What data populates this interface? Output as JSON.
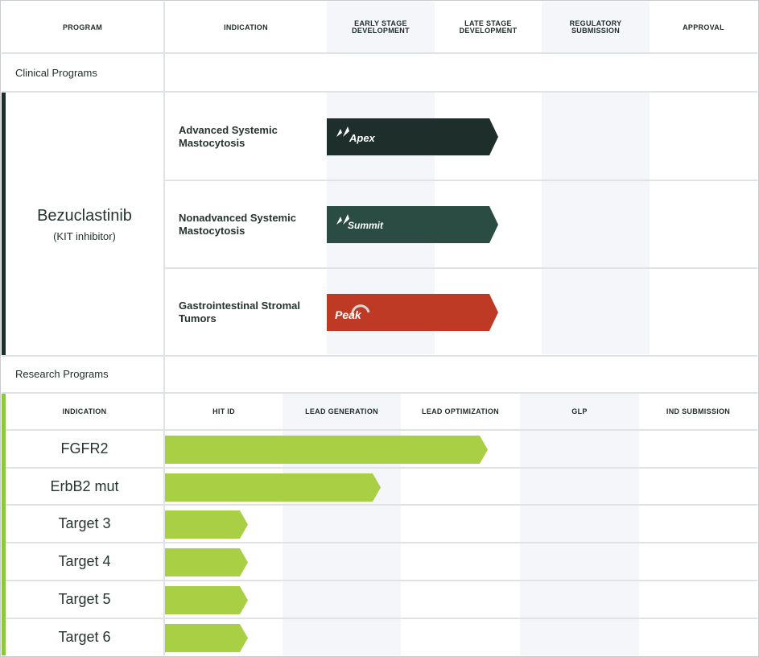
{
  "clinical_header": {
    "program": "PROGRAM",
    "indication": "INDICATION",
    "early": "EARLY STAGE\nDEVELOPMENT",
    "late": "LATE STAGE\nDEVELOPMENT",
    "regulatory": "REGULATORY\nSUBMISSION",
    "approval": "APPROVAL"
  },
  "clinical_section_label": "Clinical Programs",
  "program": {
    "name": "Bezuclastinib",
    "subtitle": "(KIT inhibitor)"
  },
  "clinical_rows": [
    {
      "indication": "Advanced Systemic Mastocytosis",
      "trial": "Apex",
      "color": "#1e2e2a",
      "icon": "mountain-peaks-icon"
    },
    {
      "indication": "Nonadvanced Systemic Mastocytosis",
      "trial": "Summit",
      "color": "#2b4c43",
      "icon": "mountain-peaks-icon"
    },
    {
      "indication": "Gastrointestinal Stromal Tumors",
      "trial": "Peak",
      "color": "#bf3a24",
      "icon": "peak-arc-icon"
    }
  ],
  "research_section_label": "Research Programs",
  "research_header": {
    "indication": "INDICATION",
    "hit_id": "HIT ID",
    "lead_gen": "LEAD GENERATION",
    "lead_opt": "LEAD OPTIMIZATION",
    "glp": "GLP",
    "ind": "IND SUBMISSION"
  },
  "research_rows": [
    {
      "target": "FGFR2",
      "progress_stages": 2.72
    },
    {
      "target": "ErbB2 mut",
      "progress_stages": 1.82
    },
    {
      "target": "Target 3",
      "progress_stages": 0.7
    },
    {
      "target": "Target 4",
      "progress_stages": 0.7
    },
    {
      "target": "Target 5",
      "progress_stages": 0.7
    },
    {
      "target": "Target 6",
      "progress_stages": 0.7
    }
  ],
  "colors": {
    "clinical_accent": "#1e2e2a",
    "research_accent": "#8dc63f",
    "research_bar": "#a9cf45",
    "shade": "#f4f6fa",
    "grid": "#dfe3e6"
  }
}
